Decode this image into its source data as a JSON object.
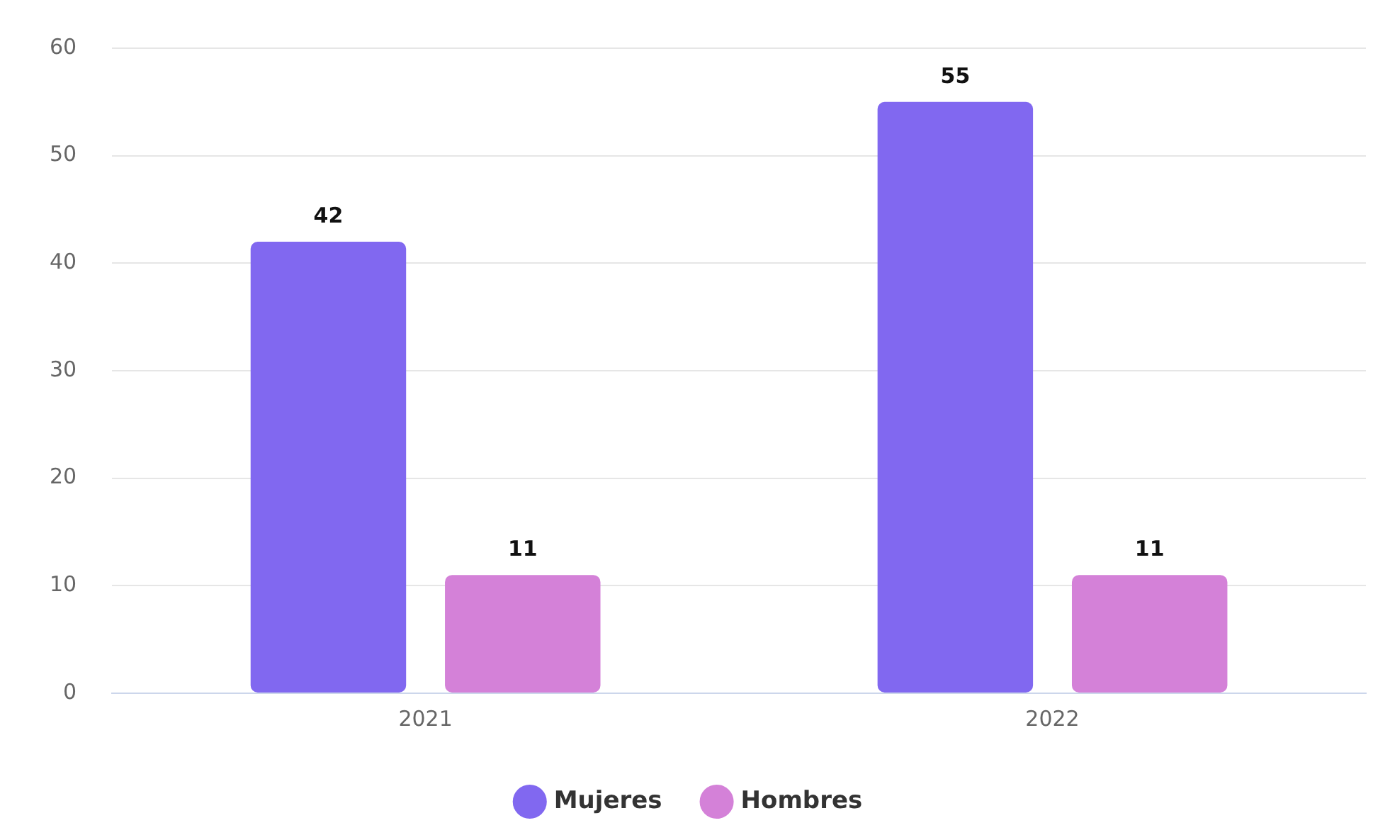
{
  "chart_data": {
    "type": "bar",
    "categories": [
      "2021",
      "2022"
    ],
    "series": [
      {
        "name": "Mujeres",
        "color": "#8168f0",
        "values": [
          42,
          55
        ]
      },
      {
        "name": "Hombres",
        "color": "#d481d8",
        "values": [
          11,
          11
        ]
      }
    ],
    "ylim": [
      0,
      60
    ],
    "yticks": [
      0,
      10,
      20,
      30,
      40,
      50,
      60
    ],
    "grid": "y",
    "legend": "bottom",
    "data_labels": true
  }
}
